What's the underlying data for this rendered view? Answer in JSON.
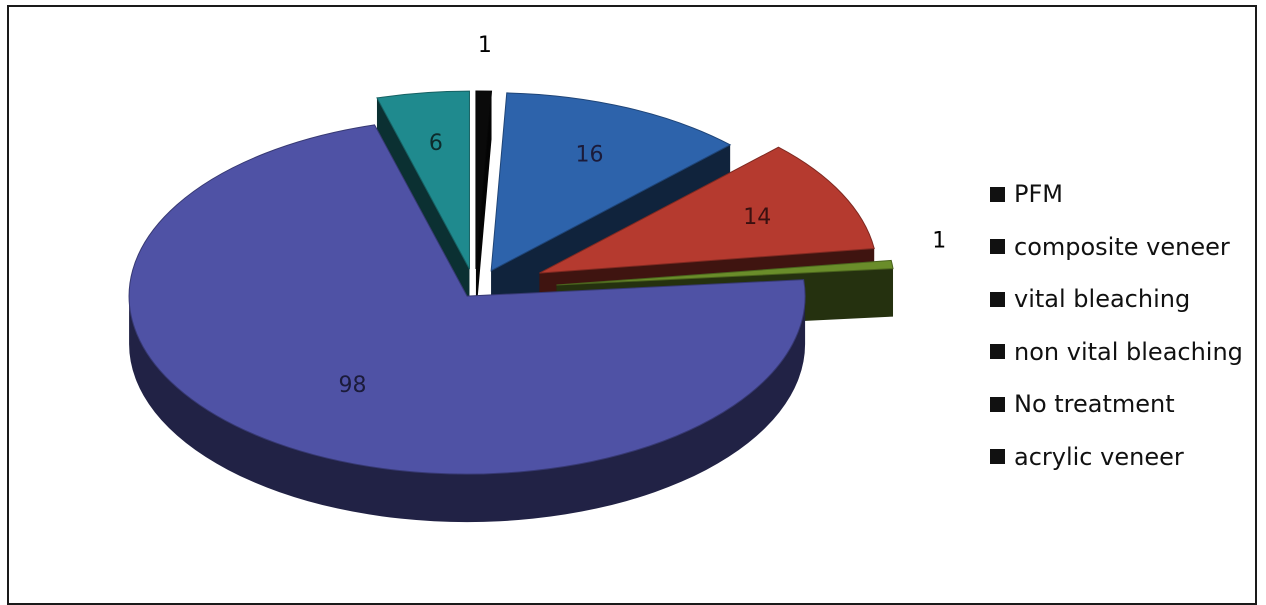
{
  "chart_data": {
    "type": "pie",
    "title": "",
    "legend_position": "right",
    "slices": [
      {
        "label": "PFM",
        "value": 1,
        "color": "#0a0a0a"
      },
      {
        "label": "composite veneer",
        "value": 16,
        "color": "#2d63ab"
      },
      {
        "label": "vital bleaching",
        "value": 14,
        "color": "#b53a2f"
      },
      {
        "label": "non vital bleaching",
        "value": 1,
        "color": "#6a8d2a"
      },
      {
        "label": "No treatment",
        "value": 98,
        "color": "#4f52a5"
      },
      {
        "label": "acrylic veneer",
        "value": 6,
        "color": "#1f8a8e"
      }
    ]
  }
}
